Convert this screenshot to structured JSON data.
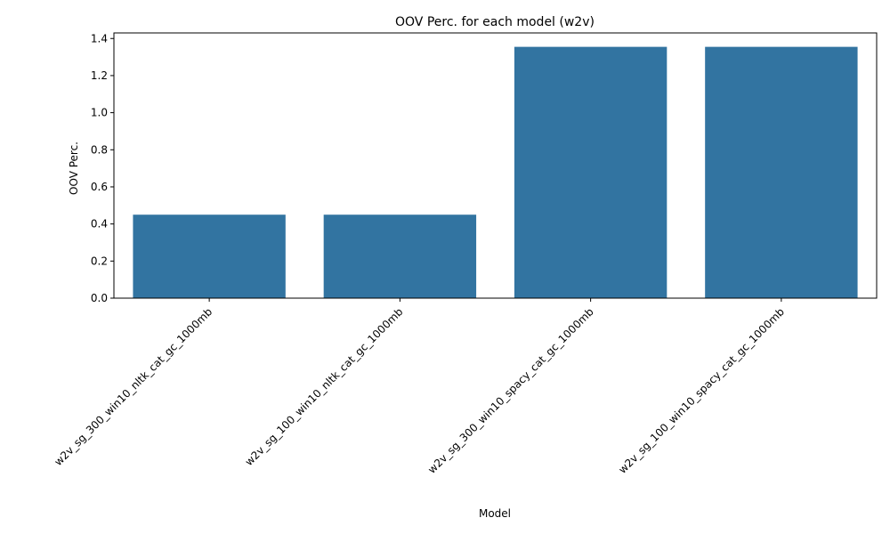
{
  "chart_data": {
    "type": "bar",
    "title": "OOV Perc. for each model (w2v)",
    "xlabel": "Model",
    "ylabel": "OOV Perc.",
    "categories": [
      "w2v_sg_300_win10_nltk_cat_gc_1000mb",
      "w2v_sg_100_win10_nltk_cat_gc_1000mb",
      "w2v_sg_300_win10_spacy_cat_gc_1000mb",
      "w2v_sg_100_win10_spacy_cat_gc_1000mb"
    ],
    "values": [
      0.45,
      0.45,
      1.355,
      1.355
    ],
    "ylim": [
      0,
      1.43
    ],
    "yticks": [
      "0.0",
      "0.2",
      "0.4",
      "0.6",
      "0.8",
      "1.0",
      "1.2",
      "1.4"
    ],
    "grid": false,
    "bar_color": "#3274a1"
  }
}
